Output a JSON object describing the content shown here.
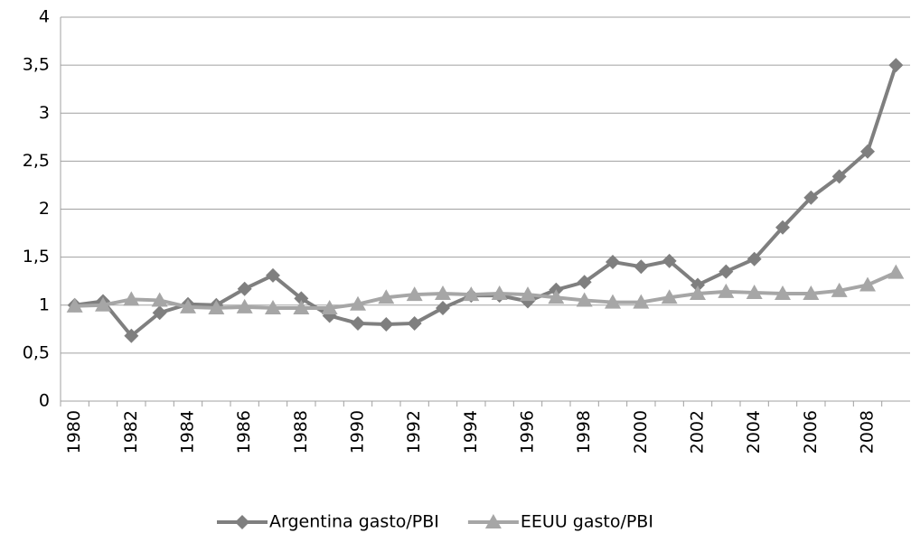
{
  "chart_data": {
    "type": "line",
    "categories": [
      "1980",
      null,
      "1982",
      null,
      "1984",
      null,
      "1986",
      null,
      "1988",
      null,
      "1990",
      null,
      "1992",
      null,
      "1994",
      null,
      "1996",
      null,
      "1998",
      null,
      "2000",
      null,
      "2002",
      null,
      "2004",
      null,
      "2006",
      null,
      "2008",
      null
    ],
    "series": [
      {
        "name": "Argentina gasto/PBI",
        "color": "#7f7f7f",
        "marker": "diamond",
        "values": [
          1.0,
          1.04,
          0.68,
          0.92,
          1.01,
          1.0,
          1.17,
          1.31,
          1.07,
          0.89,
          0.81,
          0.8,
          0.81,
          0.97,
          1.1,
          1.1,
          1.04,
          1.16,
          1.24,
          1.45,
          1.4,
          1.46,
          1.21,
          1.35,
          1.48,
          1.81,
          2.12,
          2.34,
          2.6,
          3.5
        ]
      },
      {
        "name": "EEUU gasto/PBI",
        "color": "#a6a6a6",
        "marker": "triangle",
        "values": [
          0.99,
          1.0,
          1.06,
          1.05,
          0.98,
          0.97,
          0.98,
          0.97,
          0.97,
          0.97,
          1.01,
          1.08,
          1.11,
          1.12,
          1.11,
          1.12,
          1.11,
          1.08,
          1.05,
          1.03,
          1.03,
          1.08,
          1.12,
          1.14,
          1.13,
          1.12,
          1.12,
          1.15,
          1.21,
          1.34
        ]
      }
    ],
    "ylim": [
      0,
      4
    ],
    "yticks": [
      0,
      {
        "value": 0.5,
        "label": "0,5"
      },
      1,
      {
        "value": 1.5,
        "label": "1,5"
      },
      2,
      {
        "value": 2.5,
        "label": "2,5"
      },
      3,
      {
        "value": 3.5,
        "label": "3,5"
      },
      4
    ],
    "grid": true,
    "legend": "bottom"
  }
}
